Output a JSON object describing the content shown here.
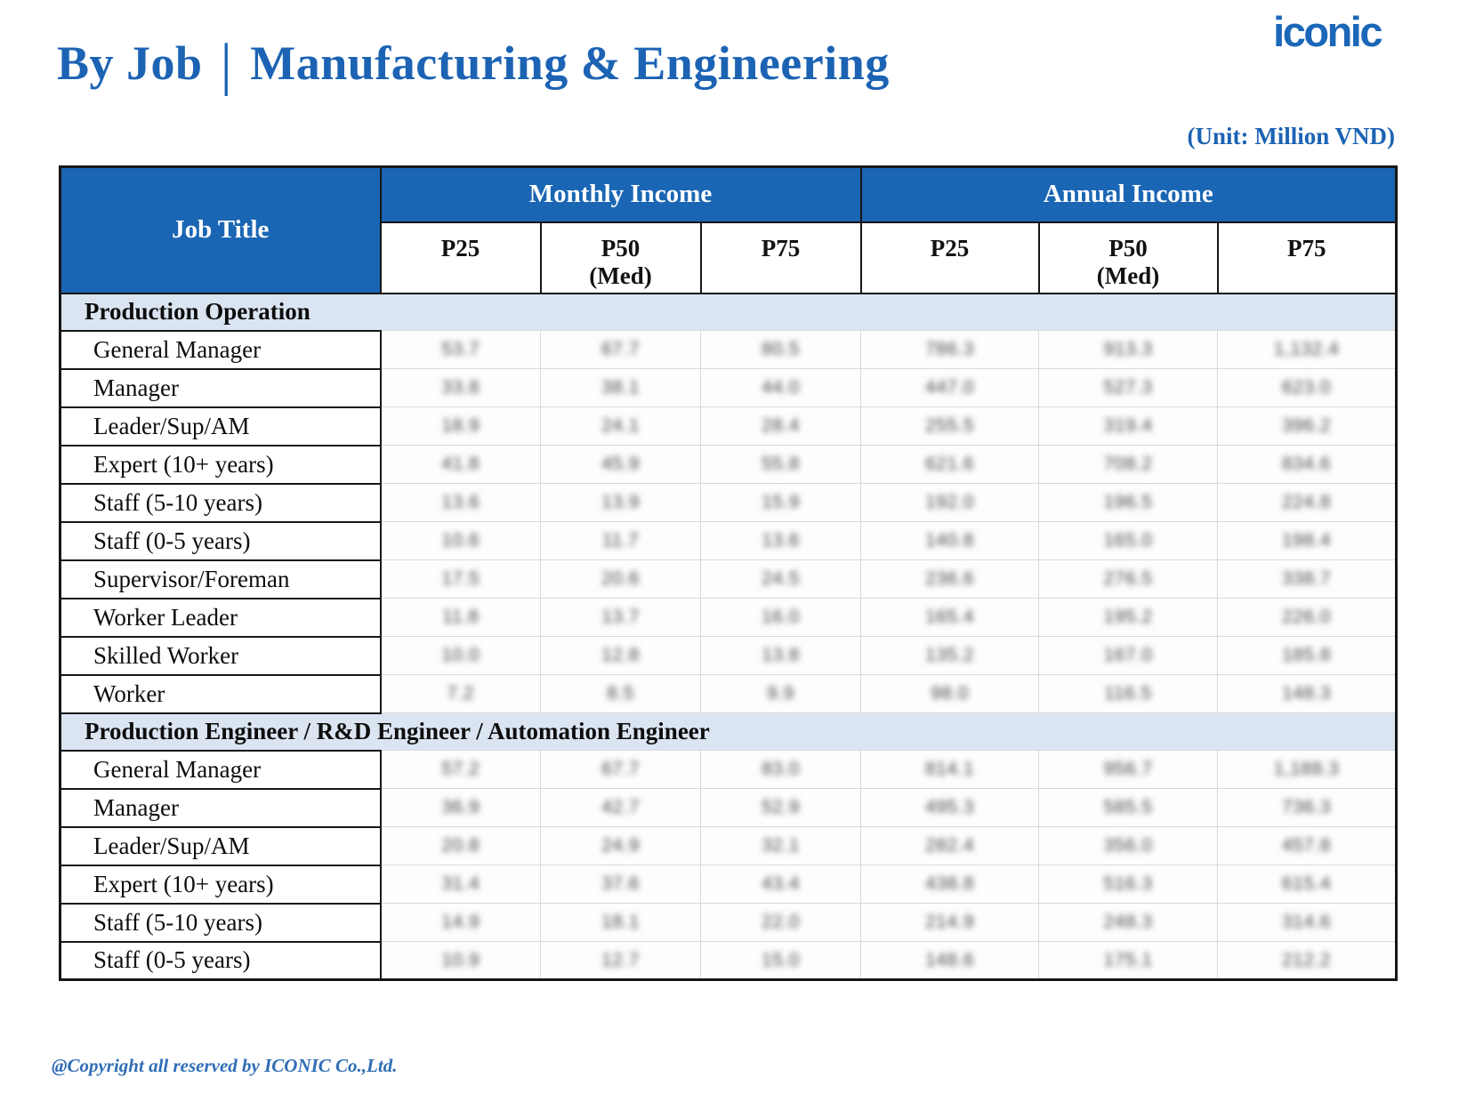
{
  "page": {
    "logo_text": "iconic",
    "title_left": "By Job",
    "title_separator": "|",
    "title_right": "Manufacturing & Engineering",
    "unit_label": "(Unit: Million VND)",
    "copyright": "@Copyright all reserved by ICONIC Co.,Ltd."
  },
  "colors": {
    "header_blue": "#1a66b4",
    "title_blue": "#1c63b4",
    "section_row_bg": "#dbe5f2",
    "table_border": "#161616"
  },
  "table": {
    "corner_header": "Job Title",
    "groups": [
      {
        "label": "Monthly Income",
        "columns": [
          {
            "p": "P25",
            "sub": ""
          },
          {
            "p": "P50",
            "sub": "(Med)"
          },
          {
            "p": "P75",
            "sub": ""
          }
        ]
      },
      {
        "label": "Annual Income",
        "columns": [
          {
            "p": "P25",
            "sub": ""
          },
          {
            "p": "P50",
            "sub": "(Med)"
          },
          {
            "p": "P75",
            "sub": ""
          }
        ]
      }
    ],
    "data_cells_blurred": true,
    "sections": [
      {
        "title": "Production Operation",
        "rows": [
          {
            "label": "General Manager",
            "values": [
              "53.7",
              "67.7",
              "80.5",
              "786.3",
              "913.3",
              "1,132.4"
            ]
          },
          {
            "label": "Manager",
            "values": [
              "33.8",
              "38.1",
              "44.0",
              "447.0",
              "527.3",
              "623.0"
            ]
          },
          {
            "label": "Leader/Sup/AM",
            "values": [
              "18.9",
              "24.1",
              "28.4",
              "255.5",
              "319.4",
              "396.2"
            ]
          },
          {
            "label": "Expert (10+ years)",
            "values": [
              "41.8",
              "45.9",
              "55.8",
              "621.6",
              "708.2",
              "834.6"
            ]
          },
          {
            "label": "Staff (5-10 years)",
            "values": [
              "13.6",
              "13.9",
              "15.9",
              "192.0",
              "196.5",
              "224.8"
            ]
          },
          {
            "label": "Staff (0-5 years)",
            "values": [
              "10.6",
              "11.7",
              "13.6",
              "140.8",
              "165.0",
              "198.4"
            ]
          },
          {
            "label": "Supervisor/Foreman",
            "values": [
              "17.5",
              "20.6",
              "24.5",
              "236.6",
              "276.5",
              "338.7"
            ]
          },
          {
            "label": "Worker Leader",
            "values": [
              "11.8",
              "13.7",
              "16.0",
              "165.4",
              "195.2",
              "226.0"
            ]
          },
          {
            "label": "Skilled Worker",
            "values": [
              "10.0",
              "12.8",
              "13.8",
              "135.2",
              "167.0",
              "185.8"
            ]
          },
          {
            "label": "Worker",
            "values": [
              "7.2",
              "8.5",
              "9.9",
              "98.0",
              "116.5",
              "148.3"
            ]
          }
        ]
      },
      {
        "title": "Production Engineer / R&D Engineer / Automation Engineer",
        "rows": [
          {
            "label": "General Manager",
            "values": [
              "57.2",
              "67.7",
              "83.0",
              "814.1",
              "956.7",
              "1,188.3"
            ]
          },
          {
            "label": "Manager",
            "values": [
              "36.9",
              "42.7",
              "52.9",
              "495.3",
              "585.5",
              "736.3"
            ]
          },
          {
            "label": "Leader/Sup/AM",
            "values": [
              "20.8",
              "24.9",
              "32.1",
              "282.4",
              "356.0",
              "457.8"
            ]
          },
          {
            "label": "Expert (10+ years)",
            "values": [
              "31.4",
              "37.6",
              "43.4",
              "438.8",
              "516.3",
              "615.4"
            ]
          },
          {
            "label": "Staff (5-10 years)",
            "values": [
              "14.9",
              "18.1",
              "22.0",
              "214.9",
              "248.3",
              "314.6"
            ]
          },
          {
            "label": "Staff (0-5 years)",
            "values": [
              "10.9",
              "12.7",
              "15.0",
              "148.6",
              "175.1",
              "212.2"
            ]
          }
        ]
      }
    ]
  }
}
